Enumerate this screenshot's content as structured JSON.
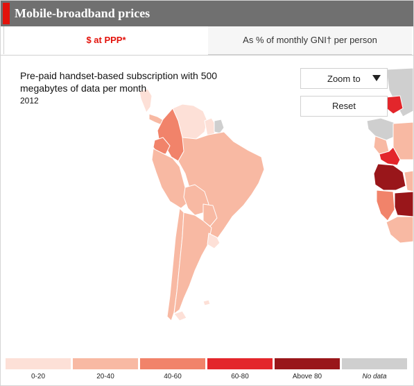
{
  "header": {
    "title": "Mobile-broadband prices"
  },
  "tabs": [
    {
      "label": "$ at PPP*",
      "active": true
    },
    {
      "label": "As % of monthly GNI† per person",
      "active": false
    }
  ],
  "map": {
    "subtitle": "Pre-paid handset-based subscription with 500 megabytes of data per month",
    "year": "2012",
    "zoom_label": "Zoom to",
    "reset_label": "Reset"
  },
  "legend": {
    "items": [
      {
        "label": "0-20",
        "color": "#fde0d7"
      },
      {
        "label": "20-40",
        "color": "#f8b9a3"
      },
      {
        "label": "40-60",
        "color": "#f1836a"
      },
      {
        "label": "60-80",
        "color": "#e3262b"
      },
      {
        "label": "Above 80",
        "color": "#99161a"
      },
      {
        "label": "No data",
        "color": "#cfcfcf"
      }
    ]
  },
  "colors": {
    "accent": "#e3120b",
    "header_bg": "#707070"
  }
}
